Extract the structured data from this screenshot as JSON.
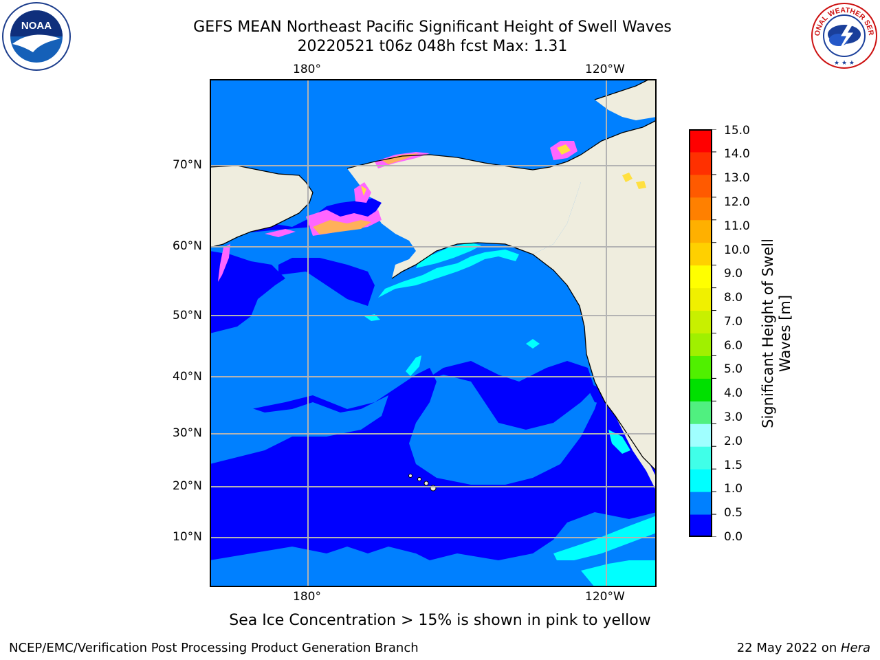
{
  "title": {
    "line1": "GEFS MEAN Northeast Pacific Significant Height of Swell Waves",
    "line2": "20220521 t06z 048h fcst   Max: 1.31"
  },
  "map": {
    "lon_labels_top": [
      "180°",
      "120°W"
    ],
    "lon_labels_bottom": [
      "180°",
      "120°W"
    ],
    "lat_labels": [
      "70°N",
      "60°N",
      "50°N",
      "40°N",
      "30°N",
      "20°N",
      "10°N"
    ],
    "colors": {
      "land": "#efedde",
      "water_0_05": "#0000ff",
      "water_05_10": "#0080ff",
      "water_10_15": "#00ffff",
      "sea_ice_low": "#ff66ff",
      "sea_ice_mid": "#ffb05a",
      "sea_ice_high": "#ffe040",
      "grid": "#b3b3b3"
    }
  },
  "colorbar": {
    "label_line1": "Significant Height of Swell",
    "label_line2": "Waves [m]",
    "ticks": [
      "15.0",
      "14.0",
      "13.0",
      "12.0",
      "11.0",
      "10.0",
      "9.0",
      "8.0",
      "7.0",
      "6.0",
      "5.0",
      "4.0",
      "3.0",
      "2.0",
      "1.5",
      "1.0",
      "0.5",
      "0.0"
    ],
    "colors": [
      "#0000ff",
      "#0080ff",
      "#00ffff",
      "#40ffe8",
      "#a0ffff",
      "#50f080",
      "#00e000",
      "#50f000",
      "#a0f000",
      "#c8f000",
      "#f0f000",
      "#ffff00",
      "#ffd000",
      "#ffb000",
      "#ff8000",
      "#ff5a00",
      "#ff3000",
      "#ff0000"
    ]
  },
  "note": "Sea Ice Concentration > 15% is shown in pink to yellow",
  "footer": {
    "left": "NCEP/EMC/Verification Post Processing Product Generation Branch",
    "date": "22 May 2022 on ",
    "host": "Hera"
  },
  "logos": {
    "noaa_text": "NOAA",
    "nws_text": "NATIONAL WEATHER SERVICE"
  }
}
